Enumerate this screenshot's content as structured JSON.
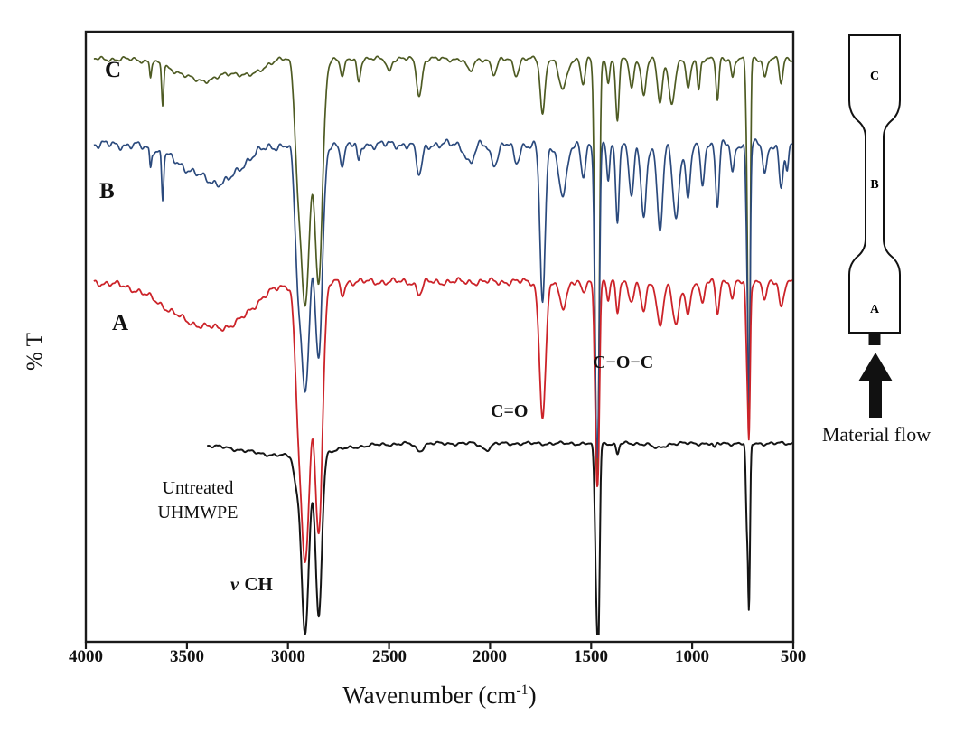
{
  "figure": {
    "ylabel": "% T",
    "xlabel_prefix": "Wavenumber (cm",
    "xlabel_sup": "-1",
    "xlabel_suffix": ")",
    "x_ticks": [
      "4000",
      "3500",
      "3000",
      "2500",
      "2000",
      "1500",
      "1000",
      "500"
    ],
    "labels": {
      "c": "C",
      "b": "B",
      "a": "A",
      "untreated1": "Untreated",
      "untreated2": "UHMWPE",
      "nu": "ν",
      "nu_ch": "CH",
      "c_o": "C=O",
      "c_o_c": "C−O−C"
    }
  },
  "chart_data": {
    "type": "line",
    "title": "",
    "xlabel": "Wavenumber (cm⁻¹)",
    "ylabel": "% T",
    "x_axis": {
      "max": 4000,
      "min": 500,
      "reversed": true,
      "ticks": [
        4000,
        3500,
        3000,
        2500,
        2000,
        1500,
        1000,
        500
      ]
    },
    "y_axis": {
      "label": "% T",
      "tick_labels_shown": false
    },
    "annotations": [
      "C",
      "B",
      "A",
      "Untreated UHMWPE",
      "ν CH",
      "C=O",
      "C−O−C"
    ],
    "series": [
      {
        "id": "c",
        "name": "C",
        "color": "#4e5b23",
        "stroke": 1.7,
        "baseline": 0.955,
        "noise": 0.005,
        "x_start": 3960,
        "x_end": 492,
        "peaks": [
          [
            3680,
            6,
            0.025
          ],
          [
            3620,
            7,
            0.065
          ],
          [
            3420,
            180,
            0.035
          ],
          [
            3180,
            80,
            0.02
          ],
          [
            2955,
            20,
            0.1
          ],
          [
            2915,
            34,
            0.4
          ],
          [
            2848,
            27,
            0.36
          ],
          [
            2730,
            14,
            0.03
          ],
          [
            2650,
            12,
            0.035
          ],
          [
            2500,
            15,
            0.02
          ],
          [
            2350,
            18,
            0.06
          ],
          [
            2100,
            25,
            0.02
          ],
          [
            1980,
            20,
            0.025
          ],
          [
            1870,
            18,
            0.025
          ],
          [
            1740,
            16,
            0.09
          ],
          [
            1640,
            28,
            0.05
          ],
          [
            1540,
            14,
            0.04
          ],
          [
            1472,
            13,
            0.66
          ],
          [
            1462,
            8,
            0.15
          ],
          [
            1415,
            10,
            0.04
          ],
          [
            1370,
            12,
            0.1
          ],
          [
            1300,
            14,
            0.05
          ],
          [
            1240,
            16,
            0.06
          ],
          [
            1160,
            18,
            0.07
          ],
          [
            1100,
            22,
            0.07
          ],
          [
            1020,
            15,
            0.05
          ],
          [
            968,
            10,
            0.05
          ],
          [
            875,
            10,
            0.07
          ],
          [
            800,
            10,
            0.03
          ],
          [
            730,
            8,
            0.1
          ],
          [
            719,
            8,
            0.6
          ],
          [
            640,
            12,
            0.03
          ],
          [
            560,
            12,
            0.04
          ]
        ]
      },
      {
        "id": "b",
        "name": "B",
        "color": "#2b4a7d",
        "stroke": 1.7,
        "baseline": 0.815,
        "noise": 0.009,
        "x_start": 3960,
        "x_end": 490,
        "peaks": [
          [
            3680,
            6,
            0.03
          ],
          [
            3620,
            7,
            0.075
          ],
          [
            3400,
            200,
            0.05
          ],
          [
            3300,
            100,
            0.02
          ],
          [
            2955,
            20,
            0.12
          ],
          [
            2915,
            34,
            0.4
          ],
          [
            2848,
            27,
            0.34
          ],
          [
            2730,
            15,
            0.03
          ],
          [
            2650,
            12,
            0.03
          ],
          [
            2350,
            20,
            0.05
          ],
          [
            2100,
            30,
            0.03
          ],
          [
            1980,
            25,
            0.03
          ],
          [
            1870,
            20,
            0.03
          ],
          [
            1740,
            18,
            0.26
          ],
          [
            1640,
            30,
            0.08
          ],
          [
            1540,
            15,
            0.05
          ],
          [
            1472,
            13,
            0.48
          ],
          [
            1462,
            8,
            0.12
          ],
          [
            1415,
            10,
            0.06
          ],
          [
            1370,
            12,
            0.12
          ],
          [
            1300,
            16,
            0.09
          ],
          [
            1240,
            18,
            0.12
          ],
          [
            1160,
            20,
            0.14
          ],
          [
            1080,
            22,
            0.12
          ],
          [
            1020,
            16,
            0.09
          ],
          [
            950,
            13,
            0.07
          ],
          [
            875,
            12,
            0.1
          ],
          [
            800,
            12,
            0.05
          ],
          [
            730,
            8,
            0.12
          ],
          [
            719,
            8,
            0.4
          ],
          [
            640,
            14,
            0.05
          ],
          [
            560,
            14,
            0.07
          ],
          [
            530,
            10,
            0.05
          ]
        ]
      },
      {
        "id": "a",
        "name": "A",
        "color": "#cc2329",
        "stroke": 1.8,
        "baseline": 0.59,
        "noise": 0.007,
        "x_start": 3960,
        "x_end": 490,
        "peaks": [
          [
            3420,
            260,
            0.07
          ],
          [
            3250,
            120,
            0.02
          ],
          [
            2955,
            20,
            0.1
          ],
          [
            2915,
            34,
            0.46
          ],
          [
            2848,
            27,
            0.4
          ],
          [
            2730,
            15,
            0.02
          ],
          [
            2350,
            20,
            0.02
          ],
          [
            1740,
            22,
            0.22
          ],
          [
            1640,
            25,
            0.04
          ],
          [
            1540,
            15,
            0.02
          ],
          [
            1472,
            13,
            0.3
          ],
          [
            1462,
            8,
            0.1
          ],
          [
            1415,
            10,
            0.03
          ],
          [
            1370,
            12,
            0.05
          ],
          [
            1300,
            18,
            0.03
          ],
          [
            1240,
            18,
            0.05
          ],
          [
            1160,
            22,
            0.07
          ],
          [
            1080,
            25,
            0.07
          ],
          [
            1020,
            18,
            0.05
          ],
          [
            950,
            14,
            0.04
          ],
          [
            875,
            12,
            0.05
          ],
          [
            800,
            12,
            0.03
          ],
          [
            730,
            8,
            0.1
          ],
          [
            719,
            8,
            0.24
          ],
          [
            640,
            15,
            0.03
          ],
          [
            560,
            15,
            0.04
          ]
        ]
      },
      {
        "id": "untreated",
        "name": "Untreated UHMWPE",
        "color": "#151515",
        "stroke": 2,
        "baseline": 0.325,
        "noise": 0.0035,
        "x_start": 3400,
        "x_end": 482,
        "peaks": [
          [
            3000,
            300,
            0.02
          ],
          [
            2960,
            18,
            0.04
          ],
          [
            2915,
            26,
            0.295
          ],
          [
            2848,
            22,
            0.27
          ],
          [
            2350,
            25,
            0.012
          ],
          [
            2019,
            30,
            0.01
          ],
          [
            1472,
            12,
            0.255
          ],
          [
            1462,
            8,
            0.18
          ],
          [
            1370,
            10,
            0.018
          ],
          [
            1170,
            40,
            0.008
          ],
          [
            890,
            10,
            0.008
          ],
          [
            730,
            7,
            0.12
          ],
          [
            719,
            7,
            0.265
          ]
        ]
      }
    ]
  },
  "specimen_diagram": {
    "zones": [
      "C",
      "B",
      "A"
    ],
    "caption": "Material flow"
  }
}
